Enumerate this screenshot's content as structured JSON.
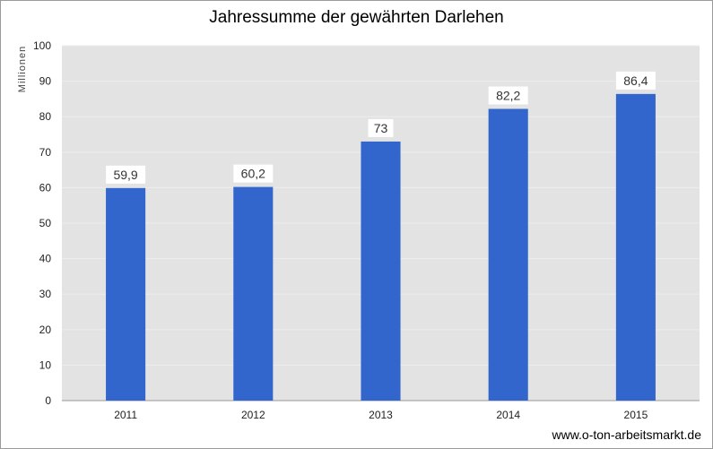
{
  "chart_data": {
    "type": "bar",
    "title": "Jahressumme der gewährten Darlehen",
    "ylabel": "Millionen",
    "xlabel": "",
    "categories": [
      "2011",
      "2012",
      "2013",
      "2014",
      "2015"
    ],
    "values": [
      59.9,
      60.2,
      73,
      82.2,
      86.4
    ],
    "value_labels": [
      "59,9",
      "60,2",
      "73",
      "82,2",
      "86,4"
    ],
    "ylim": [
      0,
      100
    ],
    "yticks": [
      0,
      10,
      20,
      30,
      40,
      50,
      60,
      70,
      80,
      90,
      100
    ],
    "grid": true,
    "legend": "none",
    "colors": {
      "bar": "#3366cc",
      "plot_background": "#e3e3e3",
      "gridline": "#ededed",
      "label_box": "#ffffff"
    }
  },
  "footer": {
    "watermark": "www.o-ton-arbeitsmarkt.de"
  }
}
